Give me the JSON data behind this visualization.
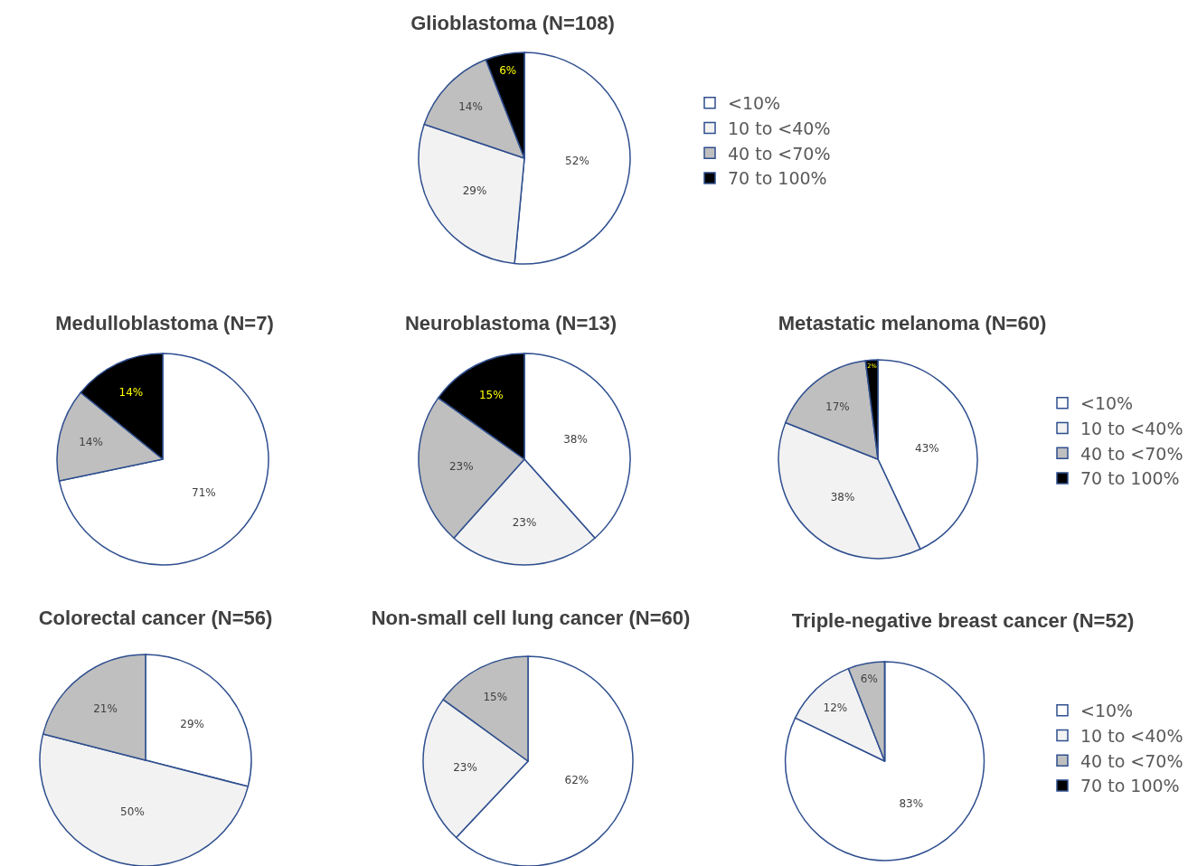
{
  "chart_data": [
    {
      "type": "pie",
      "title": "Glioblastoma (N=108)",
      "categories": [
        "<10%",
        "10 to <40%",
        "40 to <70%",
        "70 to 100%"
      ],
      "values": [
        52,
        29,
        14,
        6
      ],
      "value_labels": [
        "52%",
        "29%",
        "14%",
        "6%"
      ],
      "colors": [
        "#ffffff",
        "#f2f2f2",
        "#bfbfbf",
        "#000000"
      ],
      "legend": "right"
    },
    {
      "type": "pie",
      "title": "Medulloblastoma (N=7)",
      "categories": [
        null,
        null,
        null
      ],
      "values": [
        71,
        14,
        14
      ],
      "value_labels": [
        "71%",
        "14%",
        "14%"
      ],
      "colors": [
        "#ffffff",
        "#bfbfbf",
        "#000000"
      ]
    },
    {
      "type": "pie",
      "title": "Neuroblastoma (N=13)",
      "categories": [
        null,
        null,
        null,
        null
      ],
      "values": [
        38,
        23,
        23,
        15
      ],
      "value_labels": [
        "38%",
        "23%",
        "23%",
        "15%"
      ],
      "colors": [
        "#ffffff",
        "#f2f2f2",
        "#bfbfbf",
        "#000000"
      ]
    },
    {
      "type": "pie",
      "title": "Metastatic melanoma (N=60)",
      "categories": [
        "<10%",
        "10 to <40%",
        "40 to <70%",
        "70 to 100%"
      ],
      "values": [
        43,
        38,
        17,
        2
      ],
      "value_labels": [
        "43%",
        "38%",
        "17%",
        "2%"
      ],
      "colors": [
        "#ffffff",
        "#f2f2f2",
        "#bfbfbf",
        "#000000"
      ],
      "legend": "right"
    },
    {
      "type": "pie",
      "title": "Colorectal cancer (N=56)",
      "categories": [
        null,
        null,
        null
      ],
      "values": [
        29,
        50,
        21
      ],
      "value_labels": [
        "29%",
        "50%",
        "21%"
      ],
      "colors": [
        "#ffffff",
        "#f2f2f2",
        "#bfbfbf"
      ]
    },
    {
      "type": "pie",
      "title": "Non-small cell lung cancer (N=60)",
      "categories": [
        null,
        null,
        null
      ],
      "values": [
        62,
        23,
        15
      ],
      "value_labels": [
        "62%",
        "23%",
        "15%"
      ],
      "colors": [
        "#ffffff",
        "#f2f2f2",
        "#bfbfbf"
      ]
    },
    {
      "type": "pie",
      "title": "Triple-negative breast cancer (N=52)",
      "categories": [
        "<10%",
        "10 to <40%",
        "40 to <70%",
        "70 to 100%"
      ],
      "values": [
        83,
        12,
        6,
        0
      ],
      "value_labels": [
        "83%",
        "12%",
        "6%",
        null
      ],
      "colors": [
        "#ffffff",
        "#f2f2f2",
        "#bfbfbf",
        "#000000"
      ],
      "legend": "right"
    }
  ]
}
